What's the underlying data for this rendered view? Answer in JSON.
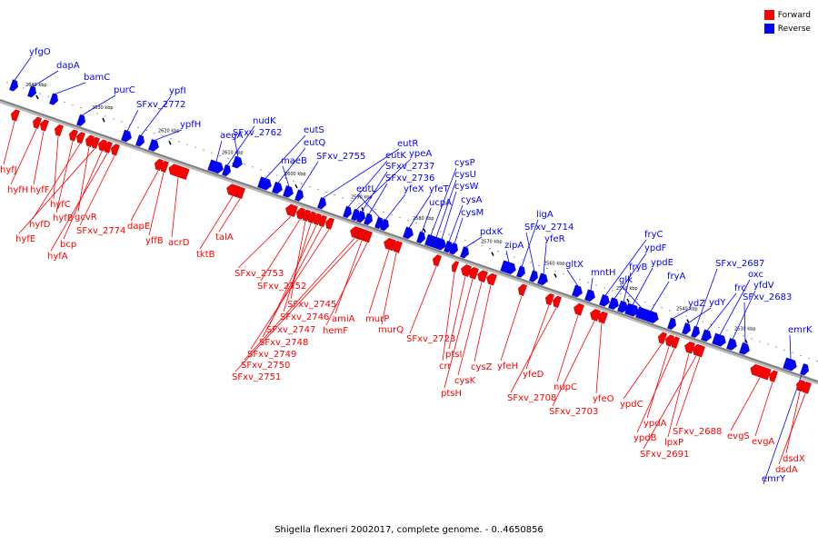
{
  "caption": "Shigella flexneri 2002017, complete genome. - 0..4650856",
  "legend": [
    {
      "label": "Forward",
      "color": "#ff0000"
    },
    {
      "label": "Reverse",
      "color": "#0000ff"
    }
  ],
  "colors": {
    "forward": "#ff0000",
    "reverse": "#0000ff",
    "axis": "#7f7f7f"
  },
  "ticks": [
    "2530 kbp",
    "2540 kbp",
    "2550 kbp",
    "2560 kbp",
    "2570 kbp",
    "2580 kbp",
    "2590 kbp",
    "2600 kbp",
    "2610 kbp",
    "2620 kbp",
    "2630 kbp",
    "2640 kbp"
  ],
  "reverse_genes": [
    "yfgO",
    "dapA",
    "bamC",
    "purC",
    "SFxv_2772",
    "ypfI",
    "ypfH",
    "aegA",
    "nudK",
    "SFxv_2762",
    "eutS",
    "eutQ",
    "maeB",
    "SFxv_2755",
    "eutR",
    "eutK",
    "ypeA",
    "SFxv_2737",
    "SFxv_2736",
    "eutL",
    "yfeX",
    "yfeT",
    "ucpA",
    "cysP",
    "cysU",
    "cysW",
    "cysA",
    "cysM",
    "pdxK",
    "zipA",
    "ligA",
    "SFxv_2714",
    "yfeR",
    "gltX",
    "mntH",
    "fryC",
    "ypdF",
    "fryB",
    "ypdE",
    "glk",
    "fryA",
    "ydZ",
    "ydY",
    "SFxv_2687",
    "frc",
    "oxc",
    "yfdV",
    "SFxv_2683",
    "emrK",
    "emrY"
  ],
  "forward_genes": [
    "hyfJ",
    "hyfH",
    "hyfF",
    "hyfC",
    "hyfB",
    "hyfD",
    "gcvR",
    "hyfE",
    "bcp",
    "hyfA",
    "SFxv_2774",
    "dapE",
    "yffB",
    "acrD",
    "tktB",
    "talA",
    "SFxv_2753",
    "SFxv_2752",
    "SFxv_2745",
    "SFxv_2746",
    "SFxv_2747",
    "SFxv_2748",
    "SFxv_2749",
    "SFxv_2750",
    "SFxv_2751",
    "amiA",
    "hemF",
    "murP",
    "murQ",
    "SFxv_2723",
    "crr",
    "ptsI",
    "ptsH",
    "cysK",
    "cysZ",
    "yfeH",
    "yfeD",
    "SFxv_2708",
    "nupC",
    "SFxv_2703",
    "yfeO",
    "ypdC",
    "ypdA",
    "ypdB",
    "lpxP",
    "SFxv_2691",
    "SFxv_2688",
    "evgS",
    "evgA",
    "dsdX",
    "dsdA"
  ]
}
